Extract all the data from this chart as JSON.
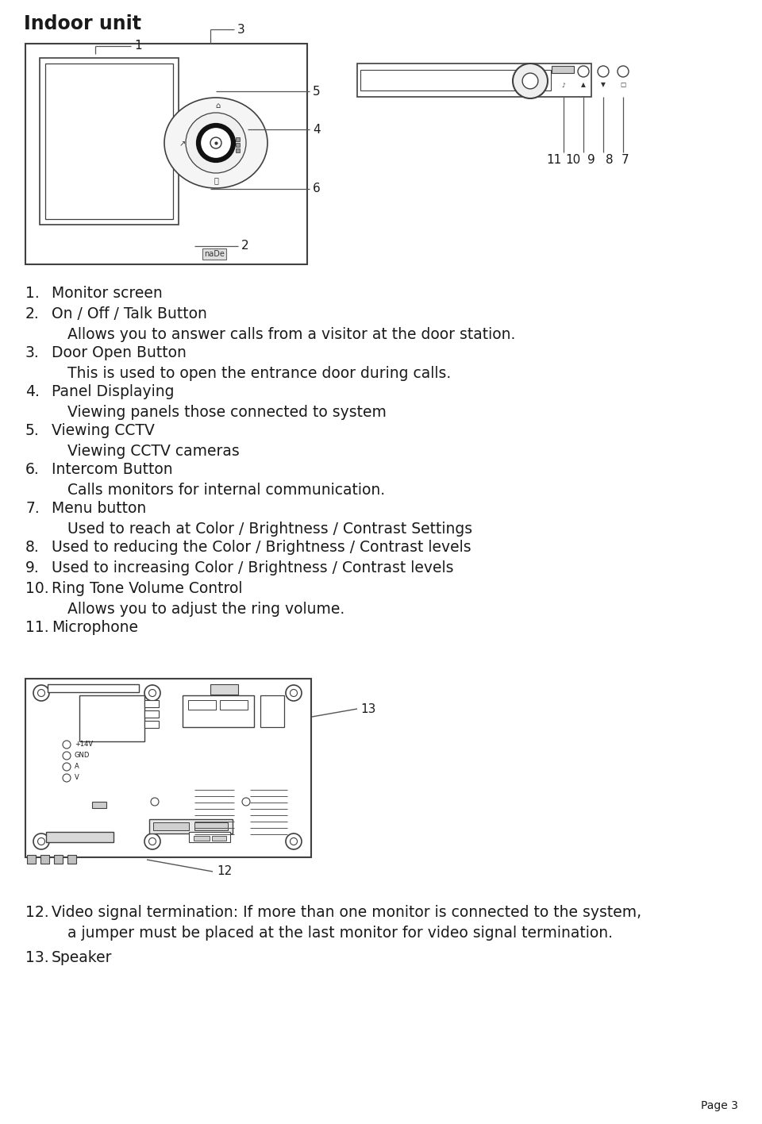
{
  "title": "Indoor unit",
  "bg_color": "#ffffff",
  "text_color": "#1a1a1a",
  "line_color": "#404040",
  "items": [
    {
      "num": "1.",
      "head": "Monitor screen",
      "desc": ""
    },
    {
      "num": "2.",
      "head": "On / Off / Talk Button",
      "desc": "Allows you to answer calls from a visitor at the door station."
    },
    {
      "num": "3.",
      "head": "Door Open Button",
      "desc": "This is used to open the entrance door during calls."
    },
    {
      "num": "4.",
      "head": "Panel Displaying",
      "desc": "Viewing panels those connected to system"
    },
    {
      "num": "5.",
      "head": "Viewing CCTV",
      "desc": "Viewing CCTV cameras"
    },
    {
      "num": "6.",
      "head": "Intercom Button",
      "desc": "Calls monitors for internal communication."
    },
    {
      "num": "7.",
      "head": "Menu button",
      "desc": "Used to reach at Color / Brightness / Contrast Settings"
    },
    {
      "num": "8.",
      "head": "Used to reducing the Color / Brightness / Contrast levels",
      "desc": ""
    },
    {
      "num": "9.",
      "head": "Used to increasing Color / Brightness / Contrast levels",
      "desc": ""
    },
    {
      "num": "10.",
      "head": "Ring Tone Volume Control",
      "desc": "Allows you to adjust the ring volume."
    },
    {
      "num": "11.",
      "head": "Microphone",
      "desc": ""
    }
  ],
  "items2": [
    {
      "num": "12.",
      "head": "Video signal termination: If more than one monitor is connected to the system,",
      "desc": "a jumper must be placed at the last monitor for video signal termination."
    },
    {
      "num": "13.",
      "head": "Speaker",
      "desc": ""
    }
  ],
  "page": "Page 3"
}
